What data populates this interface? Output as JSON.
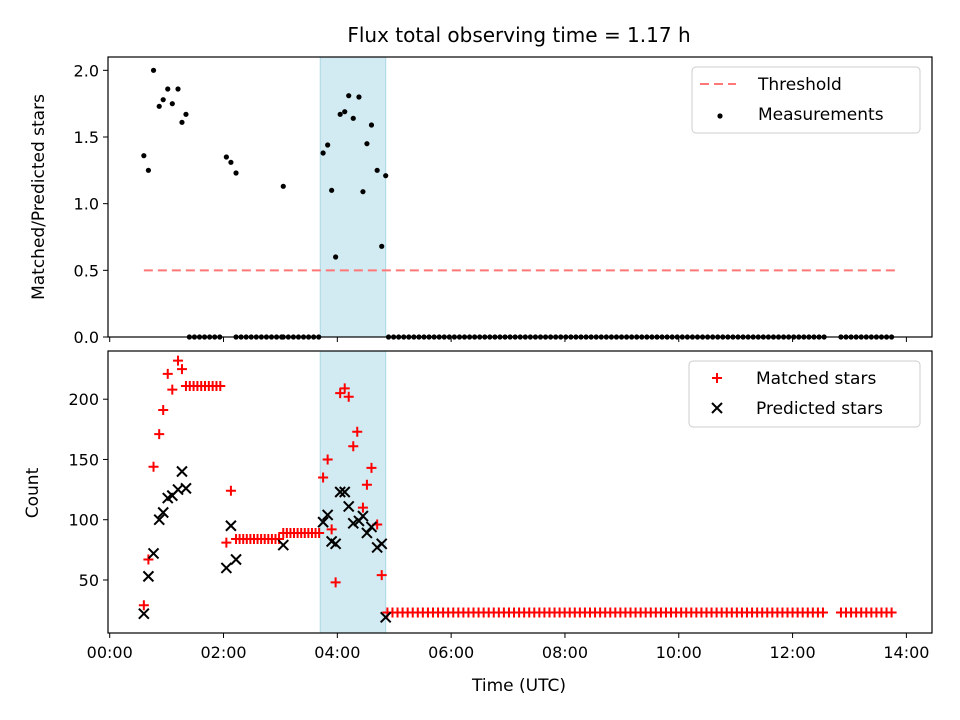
{
  "colors": {
    "threshold": "#ff7777",
    "measurements": "#000000",
    "matched": "#ff0000",
    "predicted": "#000000",
    "highlight": "#add8e6"
  },
  "chart_data": [
    {
      "type": "scatter",
      "title": "Flux total observing time = 1.17 h",
      "xlabel": "",
      "ylabel": "Matched/Predicted stars",
      "xlim": [
        -0.03,
        14.45
      ],
      "ylim": [
        0,
        2.1
      ],
      "yticks": [
        "0.0",
        "0.5",
        "1.0",
        "1.5",
        "2.0"
      ],
      "highlight_span": [
        3.7,
        4.85
      ],
      "legend": {
        "placement": "top-right",
        "entries": [
          "Threshold",
          "Measurements"
        ]
      },
      "series": [
        {
          "name": "Threshold",
          "kind": "dashed-line",
          "x": [
            0.6,
            13.8
          ],
          "y": [
            0.5,
            0.5
          ]
        },
        {
          "name": "Measurements",
          "kind": "scatter",
          "points": [
            [
              0.6,
              1.36
            ],
            [
              0.68,
              1.25
            ],
            [
              0.77,
              2.0
            ],
            [
              0.87,
              1.73
            ],
            [
              0.94,
              1.78
            ],
            [
              1.02,
              1.86
            ],
            [
              1.1,
              1.75
            ],
            [
              1.2,
              1.86
            ],
            [
              1.27,
              1.61
            ],
            [
              1.34,
              1.67
            ],
            [
              2.05,
              1.35
            ],
            [
              2.13,
              1.31
            ],
            [
              2.22,
              1.23
            ],
            [
              3.05,
              1.13
            ],
            [
              3.75,
              1.38
            ],
            [
              3.83,
              1.44
            ],
            [
              3.9,
              1.1
            ],
            [
              3.97,
              0.6
            ],
            [
              4.05,
              1.67
            ],
            [
              4.13,
              1.69
            ],
            [
              4.2,
              1.81
            ],
            [
              4.28,
              1.64
            ],
            [
              4.38,
              1.8
            ],
            [
              4.45,
              1.09
            ],
            [
              4.52,
              1.45
            ],
            [
              4.6,
              1.59
            ],
            [
              4.7,
              1.25
            ],
            [
              4.78,
              0.68
            ],
            [
              4.85,
              1.21
            ]
          ],
          "zero_segments": [
            [
              1.4,
              2.0
            ],
            [
              2.22,
              3.05
            ],
            [
              3.05,
              3.7
            ],
            [
              4.9,
              12.6
            ],
            [
              12.85,
              13.8
            ]
          ],
          "zero_step": 0.089
        }
      ]
    },
    {
      "type": "scatter",
      "title": "",
      "xlabel": "Time (UTC)",
      "ylabel": "Count",
      "xlim": [
        -0.03,
        14.45
      ],
      "ylim": [
        6,
        240
      ],
      "yticks": [
        "50",
        "100",
        "150",
        "200"
      ],
      "xticks": [
        "00:00",
        "02:00",
        "04:00",
        "06:00",
        "08:00",
        "10:00",
        "12:00",
        "14:00"
      ],
      "highlight_span": [
        3.7,
        4.85
      ],
      "legend": {
        "placement": "top-right",
        "entries": [
          "Matched stars",
          "Predicted stars"
        ]
      },
      "series": [
        {
          "name": "Matched stars",
          "marker": "plus",
          "points": [
            [
              0.6,
              29
            ],
            [
              0.68,
              67
            ],
            [
              0.77,
              144
            ],
            [
              0.87,
              171
            ],
            [
              0.94,
              191
            ],
            [
              1.02,
              221
            ],
            [
              1.1,
              208
            ],
            [
              1.2,
              232
            ],
            [
              1.27,
              225
            ],
            [
              2.05,
              81
            ],
            [
              2.13,
              124
            ],
            [
              3.75,
              135
            ],
            [
              3.83,
              150
            ],
            [
              3.9,
              92
            ],
            [
              3.97,
              48
            ],
            [
              4.05,
              205
            ],
            [
              4.13,
              209
            ],
            [
              4.2,
              202
            ],
            [
              4.28,
              161
            ],
            [
              4.35,
              173
            ],
            [
              4.45,
              110
            ],
            [
              4.52,
              129
            ],
            [
              4.6,
              143
            ],
            [
              4.7,
              96
            ],
            [
              4.78,
              54
            ]
          ],
          "constant_runs": [
            {
              "from": 1.34,
              "to": 2.0,
              "value": 211,
              "step": 0.067
            },
            {
              "from": 2.22,
              "to": 2.98,
              "value": 84,
              "step": 0.063
            },
            {
              "from": 3.05,
              "to": 3.68,
              "value": 89,
              "step": 0.063
            },
            {
              "from": 4.88,
              "to": 12.6,
              "value": 23,
              "step": 0.089
            },
            {
              "from": 12.85,
              "to": 13.8,
              "value": 23,
              "step": 0.089
            }
          ]
        },
        {
          "name": "Predicted stars",
          "marker": "x",
          "points": [
            [
              0.6,
              22
            ],
            [
              0.68,
              53
            ],
            [
              0.77,
              72
            ],
            [
              0.87,
              100
            ],
            [
              0.94,
              106
            ],
            [
              1.02,
              118
            ],
            [
              1.1,
              120
            ],
            [
              1.2,
              125
            ],
            [
              1.27,
              140
            ],
            [
              1.34,
              126
            ],
            [
              2.05,
              60
            ],
            [
              2.13,
              95
            ],
            [
              2.22,
              67
            ],
            [
              3.05,
              79
            ],
            [
              3.75,
              98
            ],
            [
              3.83,
              104
            ],
            [
              3.9,
              82
            ],
            [
              3.97,
              80
            ],
            [
              4.05,
              123
            ],
            [
              4.13,
              123
            ],
            [
              4.2,
              111
            ],
            [
              4.28,
              97
            ],
            [
              4.38,
              99
            ],
            [
              4.45,
              103
            ],
            [
              4.52,
              89
            ],
            [
              4.6,
              94
            ],
            [
              4.7,
              77
            ],
            [
              4.78,
              80
            ],
            [
              4.85,
              19
            ]
          ]
        }
      ]
    }
  ]
}
